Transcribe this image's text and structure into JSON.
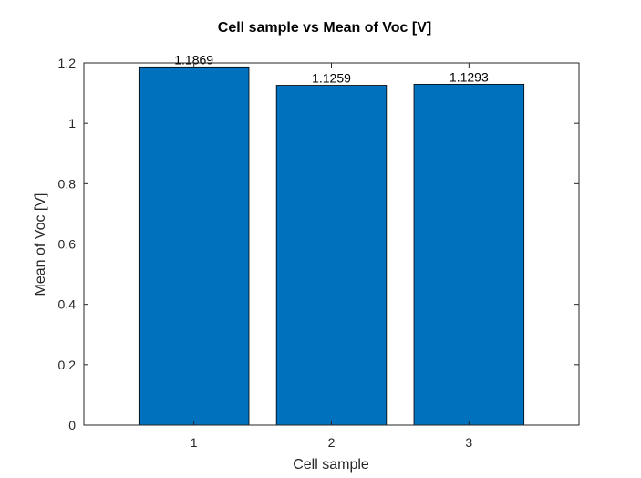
{
  "chart_data": {
    "type": "bar",
    "title": "Cell sample vs Mean of Voc [V]",
    "xlabel": "Cell sample",
    "ylabel": "Mean of Voc [V]",
    "categories": [
      "1",
      "2",
      "3"
    ],
    "values": [
      1.1869,
      1.1259,
      1.1293
    ],
    "data_labels": [
      "1.1869",
      "1.1259",
      "1.1293"
    ],
    "xlim": [
      0.2,
      3.8
    ],
    "ylim": [
      0,
      1.2
    ],
    "yticks": [
      0,
      0.2,
      0.4,
      0.6,
      0.8,
      1,
      1.2
    ],
    "ytick_labels": [
      "0",
      "0.2",
      "0.4",
      "0.6",
      "0.8",
      "1",
      "1.2"
    ],
    "grid": false,
    "bar_color": "#0072BD",
    "bar_edge_color": "#000000"
  }
}
